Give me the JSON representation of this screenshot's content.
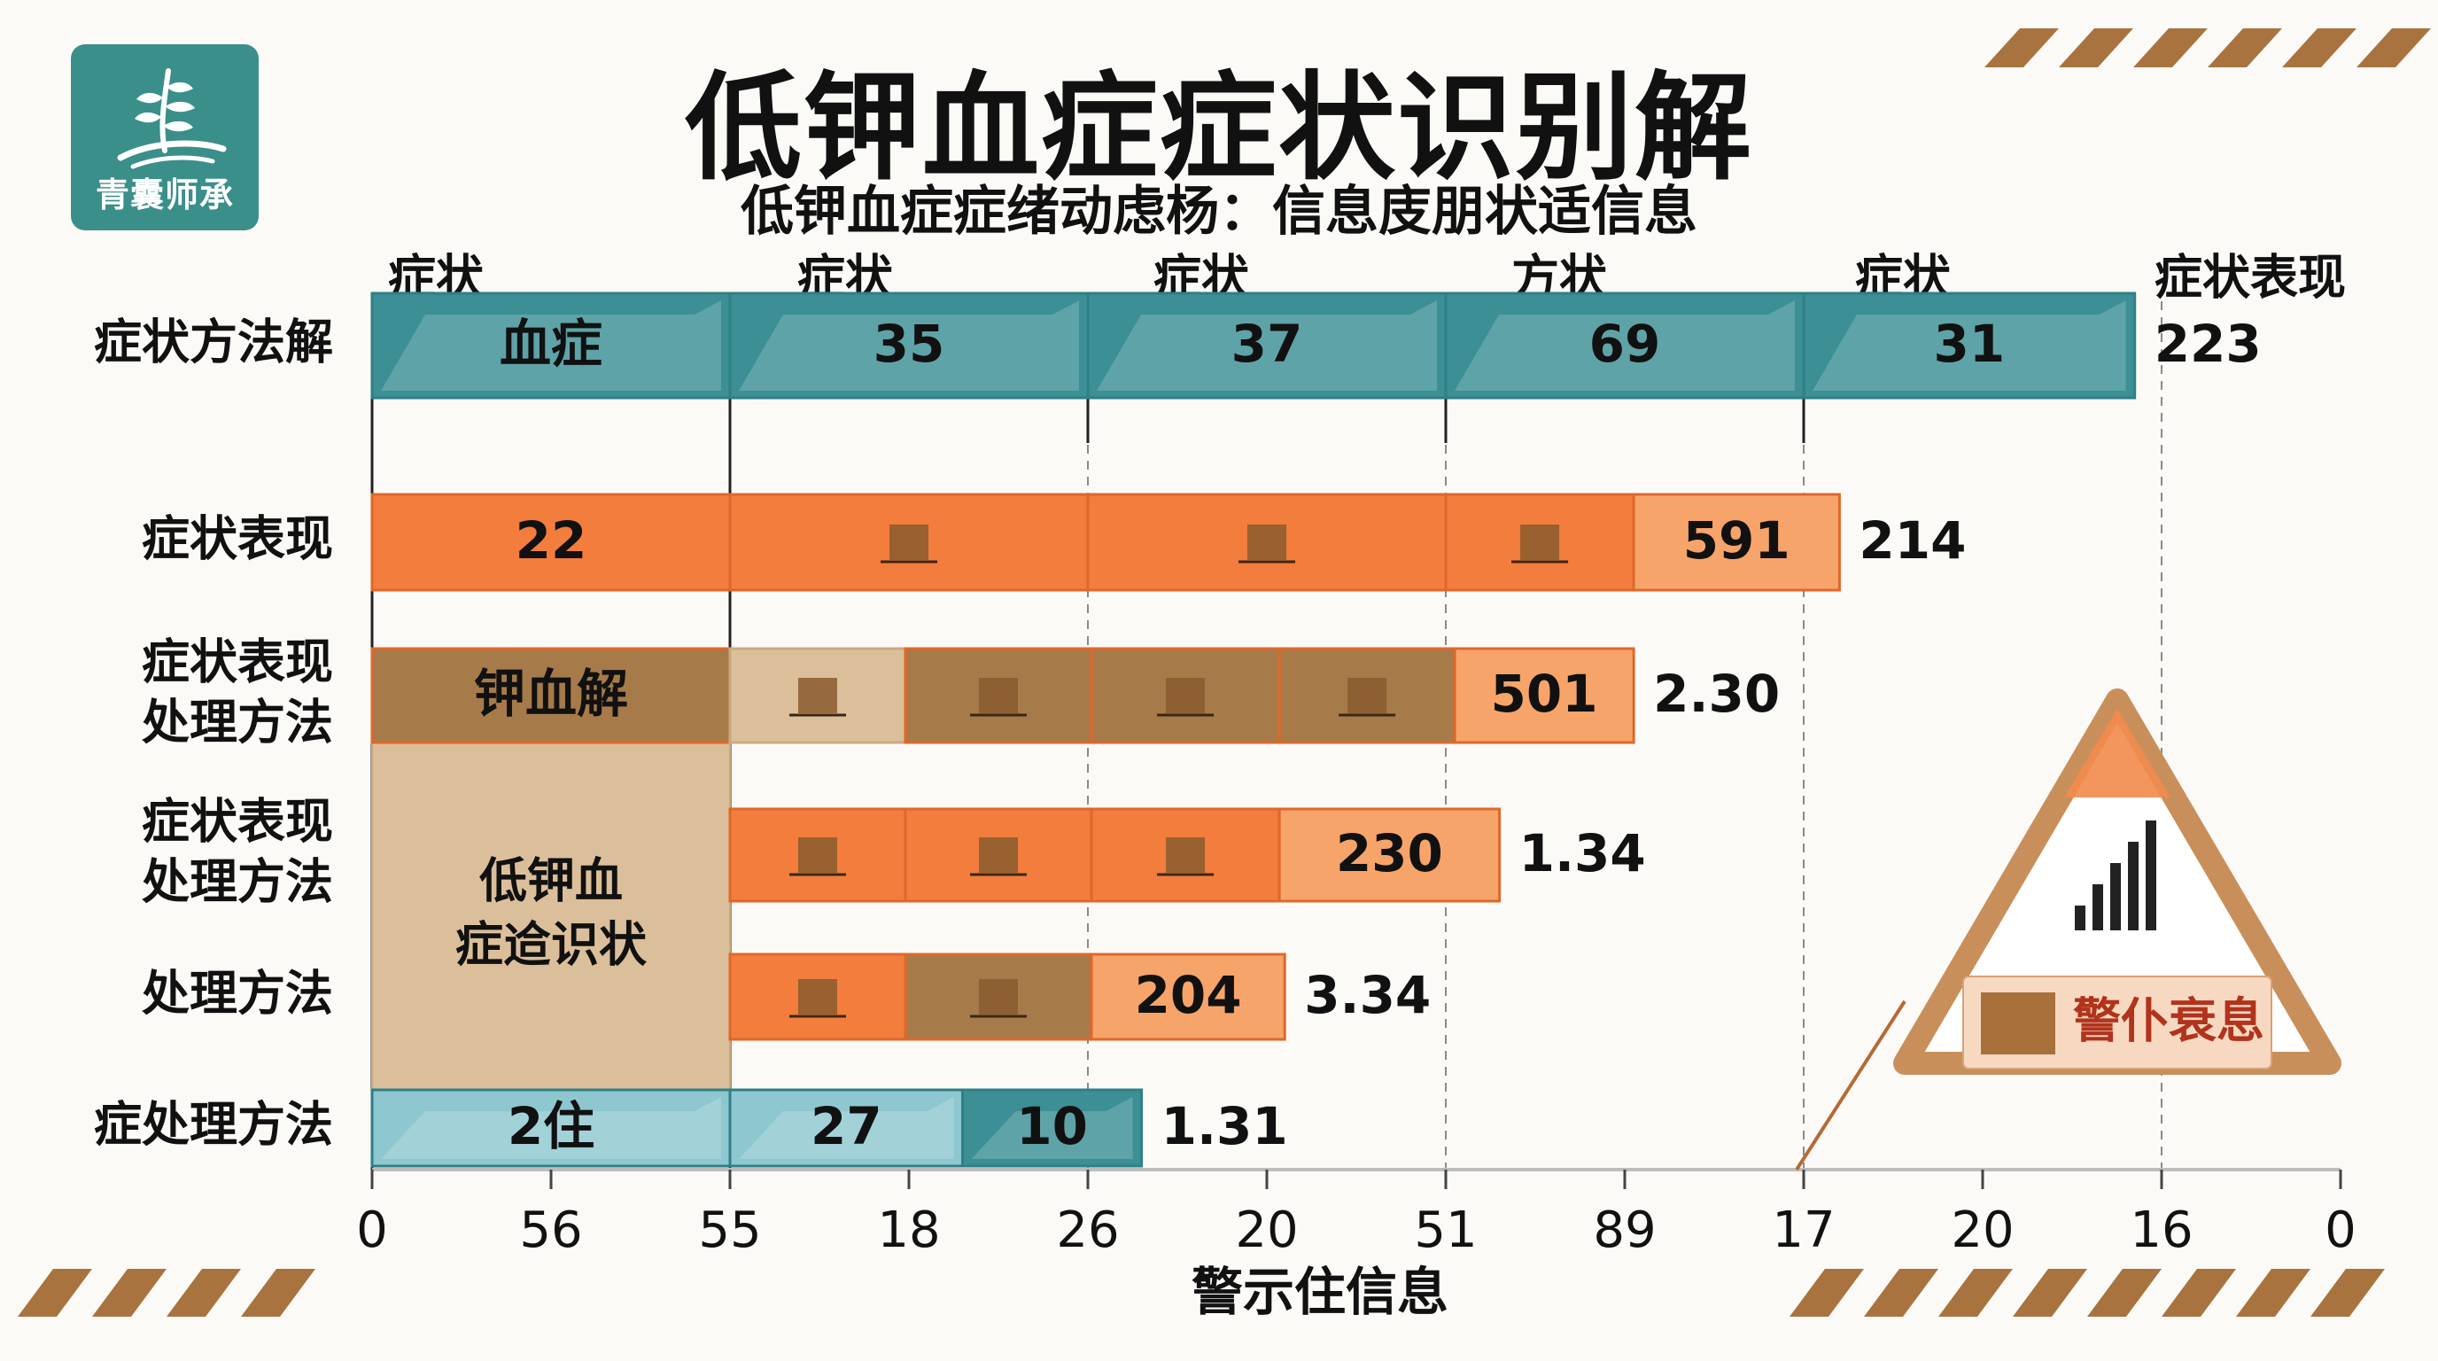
{
  "brand": {
    "logo_text": "青囊师承",
    "logo_icon": "wheat-sprout-icon",
    "teal": "#3b8f95",
    "teal_light": "#8ec7cf",
    "orange": "#f27d3d",
    "orange_light": "#f6a46a",
    "brown": "#a77a4a",
    "tan": "#dbbf9b"
  },
  "title": "低钾血症症状识别解",
  "subtitle": "低钾血症症绪动虑杨：信息庋朋状适信息",
  "chart_data": {
    "type": "bar",
    "orientation": "horizontal",
    "stacked": true,
    "column_headers": [
      "症状",
      "症状",
      "症状",
      "方状",
      "症状",
      "症状表现"
    ],
    "categories": [
      "症状方法解",
      "症状表现",
      "症状表现处理方法",
      "症状表现处理方法",
      "处理方法",
      "症处理方法"
    ],
    "x_tick_labels": [
      "0",
      "56",
      "55",
      "18",
      "26",
      "20",
      "51",
      "89",
      "17",
      "20",
      "16",
      "0"
    ],
    "xlabel": "警示住信息",
    "grid": "vertical dashed",
    "rows": [
      {
        "label": "症状方法解",
        "color": "teal",
        "end_value": 9.85,
        "end_label": "223",
        "segments": [
          {
            "from": 0,
            "to": 2,
            "label": "血症",
            "style": "teal"
          },
          {
            "from": 2,
            "to": 4,
            "label": "35",
            "style": "teal"
          },
          {
            "from": 4,
            "to": 6,
            "label": "37",
            "style": "teal"
          },
          {
            "from": 6,
            "to": 8,
            "label": "69",
            "style": "teal"
          },
          {
            "from": 8,
            "to": 9.85,
            "label": "31",
            "style": "teal"
          }
        ]
      },
      {
        "label": "症状表现",
        "color": "orange",
        "end_value": 8.2,
        "end_label": "214",
        "segments": [
          {
            "from": 0,
            "to": 2,
            "label": "22",
            "style": "orange"
          },
          {
            "from": 2,
            "to": 4,
            "label": "",
            "style": "orange"
          },
          {
            "from": 4,
            "to": 6,
            "label": "",
            "style": "orange"
          },
          {
            "from": 6,
            "to": 7.05,
            "label": "",
            "style": "orange"
          },
          {
            "from": 7.05,
            "to": 8.2,
            "label": "591",
            "style": "orange-light"
          }
        ]
      },
      {
        "label": "症状表现处理方法",
        "color": "brown",
        "end_value": 7.05,
        "end_label": "2.30",
        "segments": [
          {
            "from": 0,
            "to": 2,
            "label": "钾血解",
            "style": "brown"
          },
          {
            "from": 2,
            "to": 2.98,
            "label": "",
            "style": "tan"
          },
          {
            "from": 2.98,
            "to": 4.02,
            "label": "",
            "style": "brown"
          },
          {
            "from": 4.02,
            "to": 5.07,
            "label": "",
            "style": "brown"
          },
          {
            "from": 5.07,
            "to": 6.05,
            "label": "",
            "style": "brown"
          },
          {
            "from": 6.05,
            "to": 7.05,
            "label": "501",
            "style": "orange-light"
          }
        ]
      },
      {
        "label": "症状表现处理方法",
        "color": "orange",
        "end_value": 6.3,
        "end_label": "1.34",
        "segments": [
          {
            "from": 2,
            "to": 2.98,
            "label": "",
            "style": "orange"
          },
          {
            "from": 2.98,
            "to": 4.02,
            "label": "",
            "style": "orange"
          },
          {
            "from": 4.02,
            "to": 5.07,
            "label": "",
            "style": "orange"
          },
          {
            "from": 5.07,
            "to": 6.3,
            "label": "230",
            "style": "orange-light"
          }
        ]
      },
      {
        "label": "处理方法",
        "color": "orange",
        "end_value": 5.1,
        "end_label": "3.34",
        "segments": [
          {
            "from": 2,
            "to": 2.98,
            "label": "",
            "style": "orange"
          },
          {
            "from": 2.98,
            "to": 4.02,
            "label": "",
            "style": "brown"
          },
          {
            "from": 4.02,
            "to": 5.1,
            "label": "204",
            "style": "orange-light"
          }
        ]
      },
      {
        "label": "症处理方法",
        "color": "teal",
        "end_value": 4.3,
        "end_label": "1.31",
        "segments": [
          {
            "from": 0,
            "to": 2,
            "label": "2住",
            "style": "teal-light"
          },
          {
            "from": 2,
            "to": 3.3,
            "label": "27",
            "style": "teal-light"
          },
          {
            "from": 3.3,
            "to": 4.3,
            "label": "10",
            "style": "teal"
          }
        ]
      }
    ],
    "overlay_block": {
      "from": 0,
      "to": 2,
      "rows": [
        3,
        5
      ],
      "label": "低钾血症䢔识状",
      "style": "tan"
    },
    "warning_sign": {
      "label": "警仆衰息",
      "icon": "signal-bars-icon"
    }
  }
}
